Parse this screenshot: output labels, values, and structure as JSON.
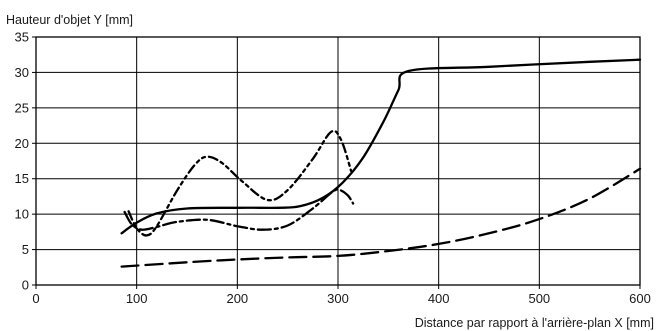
{
  "chart_data": {
    "type": "line",
    "xlabel": "Distance par rapport à l'arrière-plan X [mm]",
    "ylabel": "Hauteur d'objet Y [mm]",
    "xlim": [
      0,
      600
    ],
    "ylim": [
      0,
      35
    ],
    "xticks": [
      0,
      100,
      200,
      300,
      400,
      500,
      600
    ],
    "yticks": [
      0,
      5,
      10,
      15,
      20,
      25,
      30,
      35
    ],
    "grid": true,
    "line_color": "#000000",
    "series": [
      {
        "style": "solid",
        "points": [
          [
            85,
            7.3
          ],
          [
            100,
            8.8
          ],
          [
            120,
            10.1
          ],
          [
            150,
            10.8
          ],
          [
            200,
            10.9
          ],
          [
            240,
            10.9
          ],
          [
            262,
            11.1
          ],
          [
            285,
            12.3
          ],
          [
            305,
            14.5
          ],
          [
            325,
            18.0
          ],
          [
            345,
            23.0
          ],
          [
            360,
            27.5
          ],
          [
            370,
            30.2
          ],
          [
            450,
            30.8
          ],
          [
            550,
            31.5
          ],
          [
            600,
            31.8
          ]
        ]
      },
      {
        "style": "dash-dot",
        "points": [
          [
            88,
            10.3
          ],
          [
            95,
            8.6
          ],
          [
            105,
            7.8
          ],
          [
            120,
            8.2
          ],
          [
            140,
            8.9
          ],
          [
            170,
            9.2
          ],
          [
            200,
            8.3
          ],
          [
            225,
            7.8
          ],
          [
            250,
            8.4
          ],
          [
            275,
            10.8
          ],
          [
            295,
            13.2
          ],
          [
            302,
            13.4
          ],
          [
            310,
            12.6
          ],
          [
            315,
            11.5
          ]
        ]
      },
      {
        "style": "dash-dot-dot",
        "points": [
          [
            92,
            10.4
          ],
          [
            100,
            8.0
          ],
          [
            110,
            7.0
          ],
          [
            120,
            8.3
          ],
          [
            140,
            13.3
          ],
          [
            158,
            17.0
          ],
          [
            170,
            18.1
          ],
          [
            185,
            17.2
          ],
          [
            205,
            14.6
          ],
          [
            230,
            12.0
          ],
          [
            250,
            13.4
          ],
          [
            275,
            17.8
          ],
          [
            293,
            21.6
          ],
          [
            303,
            20.5
          ],
          [
            313,
            16.1
          ]
        ]
      },
      {
        "style": "long-dash",
        "points": [
          [
            85,
            2.6
          ],
          [
            150,
            3.2
          ],
          [
            200,
            3.6
          ],
          [
            250,
            3.9
          ],
          [
            300,
            4.1
          ],
          [
            350,
            4.8
          ],
          [
            400,
            5.8
          ],
          [
            450,
            7.3
          ],
          [
            500,
            9.3
          ],
          [
            550,
            12.2
          ],
          [
            600,
            16.4
          ]
        ]
      }
    ]
  }
}
